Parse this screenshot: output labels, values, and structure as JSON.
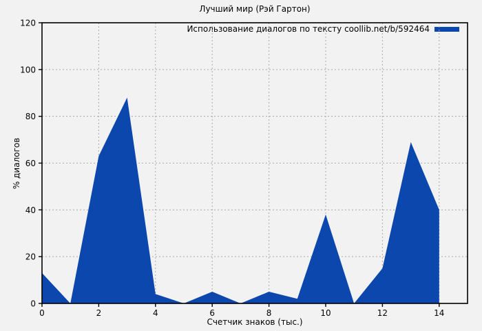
{
  "page": {
    "background": "#f2f2f2"
  },
  "chart_data": {
    "type": "area",
    "title": "Лучший мир (Рэй Гартон)",
    "xlabel": "Счетчик знаков (тыс.)",
    "ylabel": "% диалогов",
    "legend": {
      "label": "Использование диалогов по тексту coollib.net/b/592464",
      "position": "top-right",
      "swatch_color": "#0c47ae"
    },
    "x": [
      0,
      1,
      2,
      3,
      4,
      5,
      6,
      7,
      8,
      9,
      10,
      11,
      12,
      13,
      14
    ],
    "values": [
      13,
      0,
      63,
      88,
      4,
      0,
      5,
      0,
      5,
      2,
      38,
      0,
      15,
      69,
      40
    ],
    "series_color": "#0c47ae",
    "xlim": [
      0,
      15
    ],
    "ylim": [
      0,
      120
    ],
    "x_ticks": [
      0,
      2,
      4,
      6,
      8,
      10,
      12,
      14
    ],
    "y_ticks": [
      0,
      20,
      40,
      60,
      80,
      100,
      120
    ],
    "grid": true,
    "grid_color": "#a8a8a8",
    "border_color": "#000000",
    "text_color": "#000000",
    "background": "#f2f2f2"
  }
}
